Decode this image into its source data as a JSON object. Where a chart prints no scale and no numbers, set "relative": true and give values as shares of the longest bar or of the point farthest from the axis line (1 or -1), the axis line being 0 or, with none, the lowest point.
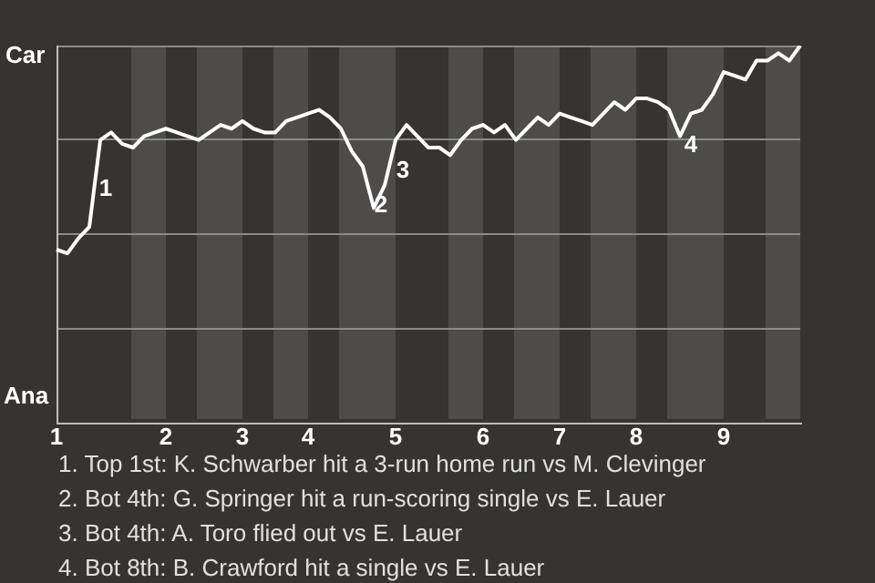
{
  "chart_data": {
    "type": "line",
    "relative": true,
    "grid": "y",
    "legend": false,
    "marker": "none",
    "line_style": "solid",
    "categories": [
      "1",
      null,
      null,
      null,
      null,
      null,
      null,
      null,
      null,
      null,
      "2",
      null,
      null,
      null,
      null,
      null,
      null,
      "3",
      null,
      null,
      null,
      null,
      null,
      "4",
      null,
      null,
      null,
      null,
      null,
      null,
      null,
      "5",
      null,
      null,
      null,
      null,
      null,
      null,
      null,
      "6",
      null,
      null,
      null,
      null,
      null,
      null,
      "7",
      null,
      null,
      null,
      null,
      null,
      null,
      "8",
      null,
      null,
      null,
      null,
      null,
      null,
      null,
      "9",
      null,
      null,
      null,
      null,
      null,
      null,
      null
    ],
    "series": [
      {
        "color": "#ffffff",
        "values": [
          0.46,
          0.45,
          0.49,
          0.52,
          0.75,
          0.77,
          0.74,
          0.73,
          0.76,
          0.77,
          0.78,
          0.77,
          0.76,
          0.75,
          0.77,
          0.79,
          0.78,
          0.8,
          0.78,
          0.77,
          0.77,
          0.8,
          0.81,
          0.82,
          0.83,
          0.81,
          0.78,
          0.72,
          0.68,
          0.57,
          0.63,
          0.75,
          0.79,
          0.76,
          0.73,
          0.73,
          0.71,
          0.75,
          0.78,
          0.79,
          0.77,
          0.79,
          0.75,
          0.78,
          0.81,
          0.79,
          0.82,
          0.81,
          0.8,
          0.79,
          0.82,
          0.85,
          0.83,
          0.86,
          0.86,
          0.85,
          0.83,
          0.76,
          0.82,
          0.83,
          0.87,
          0.93,
          0.92,
          0.91,
          0.96,
          0.96,
          0.98,
          0.96,
          1
        ]
      }
    ],
    "annotations": [
      "Car",
      "Ana",
      "1",
      "2",
      "3",
      "4",
      "1. Top 1st: K. Schwarber hit a 3-run home run vs M. Clevinger",
      "2. Bot 4th: G. Springer hit a run-scoring single vs E. Lauer",
      "3. Bot 4th: A. Toro flied out vs E. Lauer",
      "4. Bot 8th: B. Crawford hit a single vs E. Lauer"
    ]
  }
}
